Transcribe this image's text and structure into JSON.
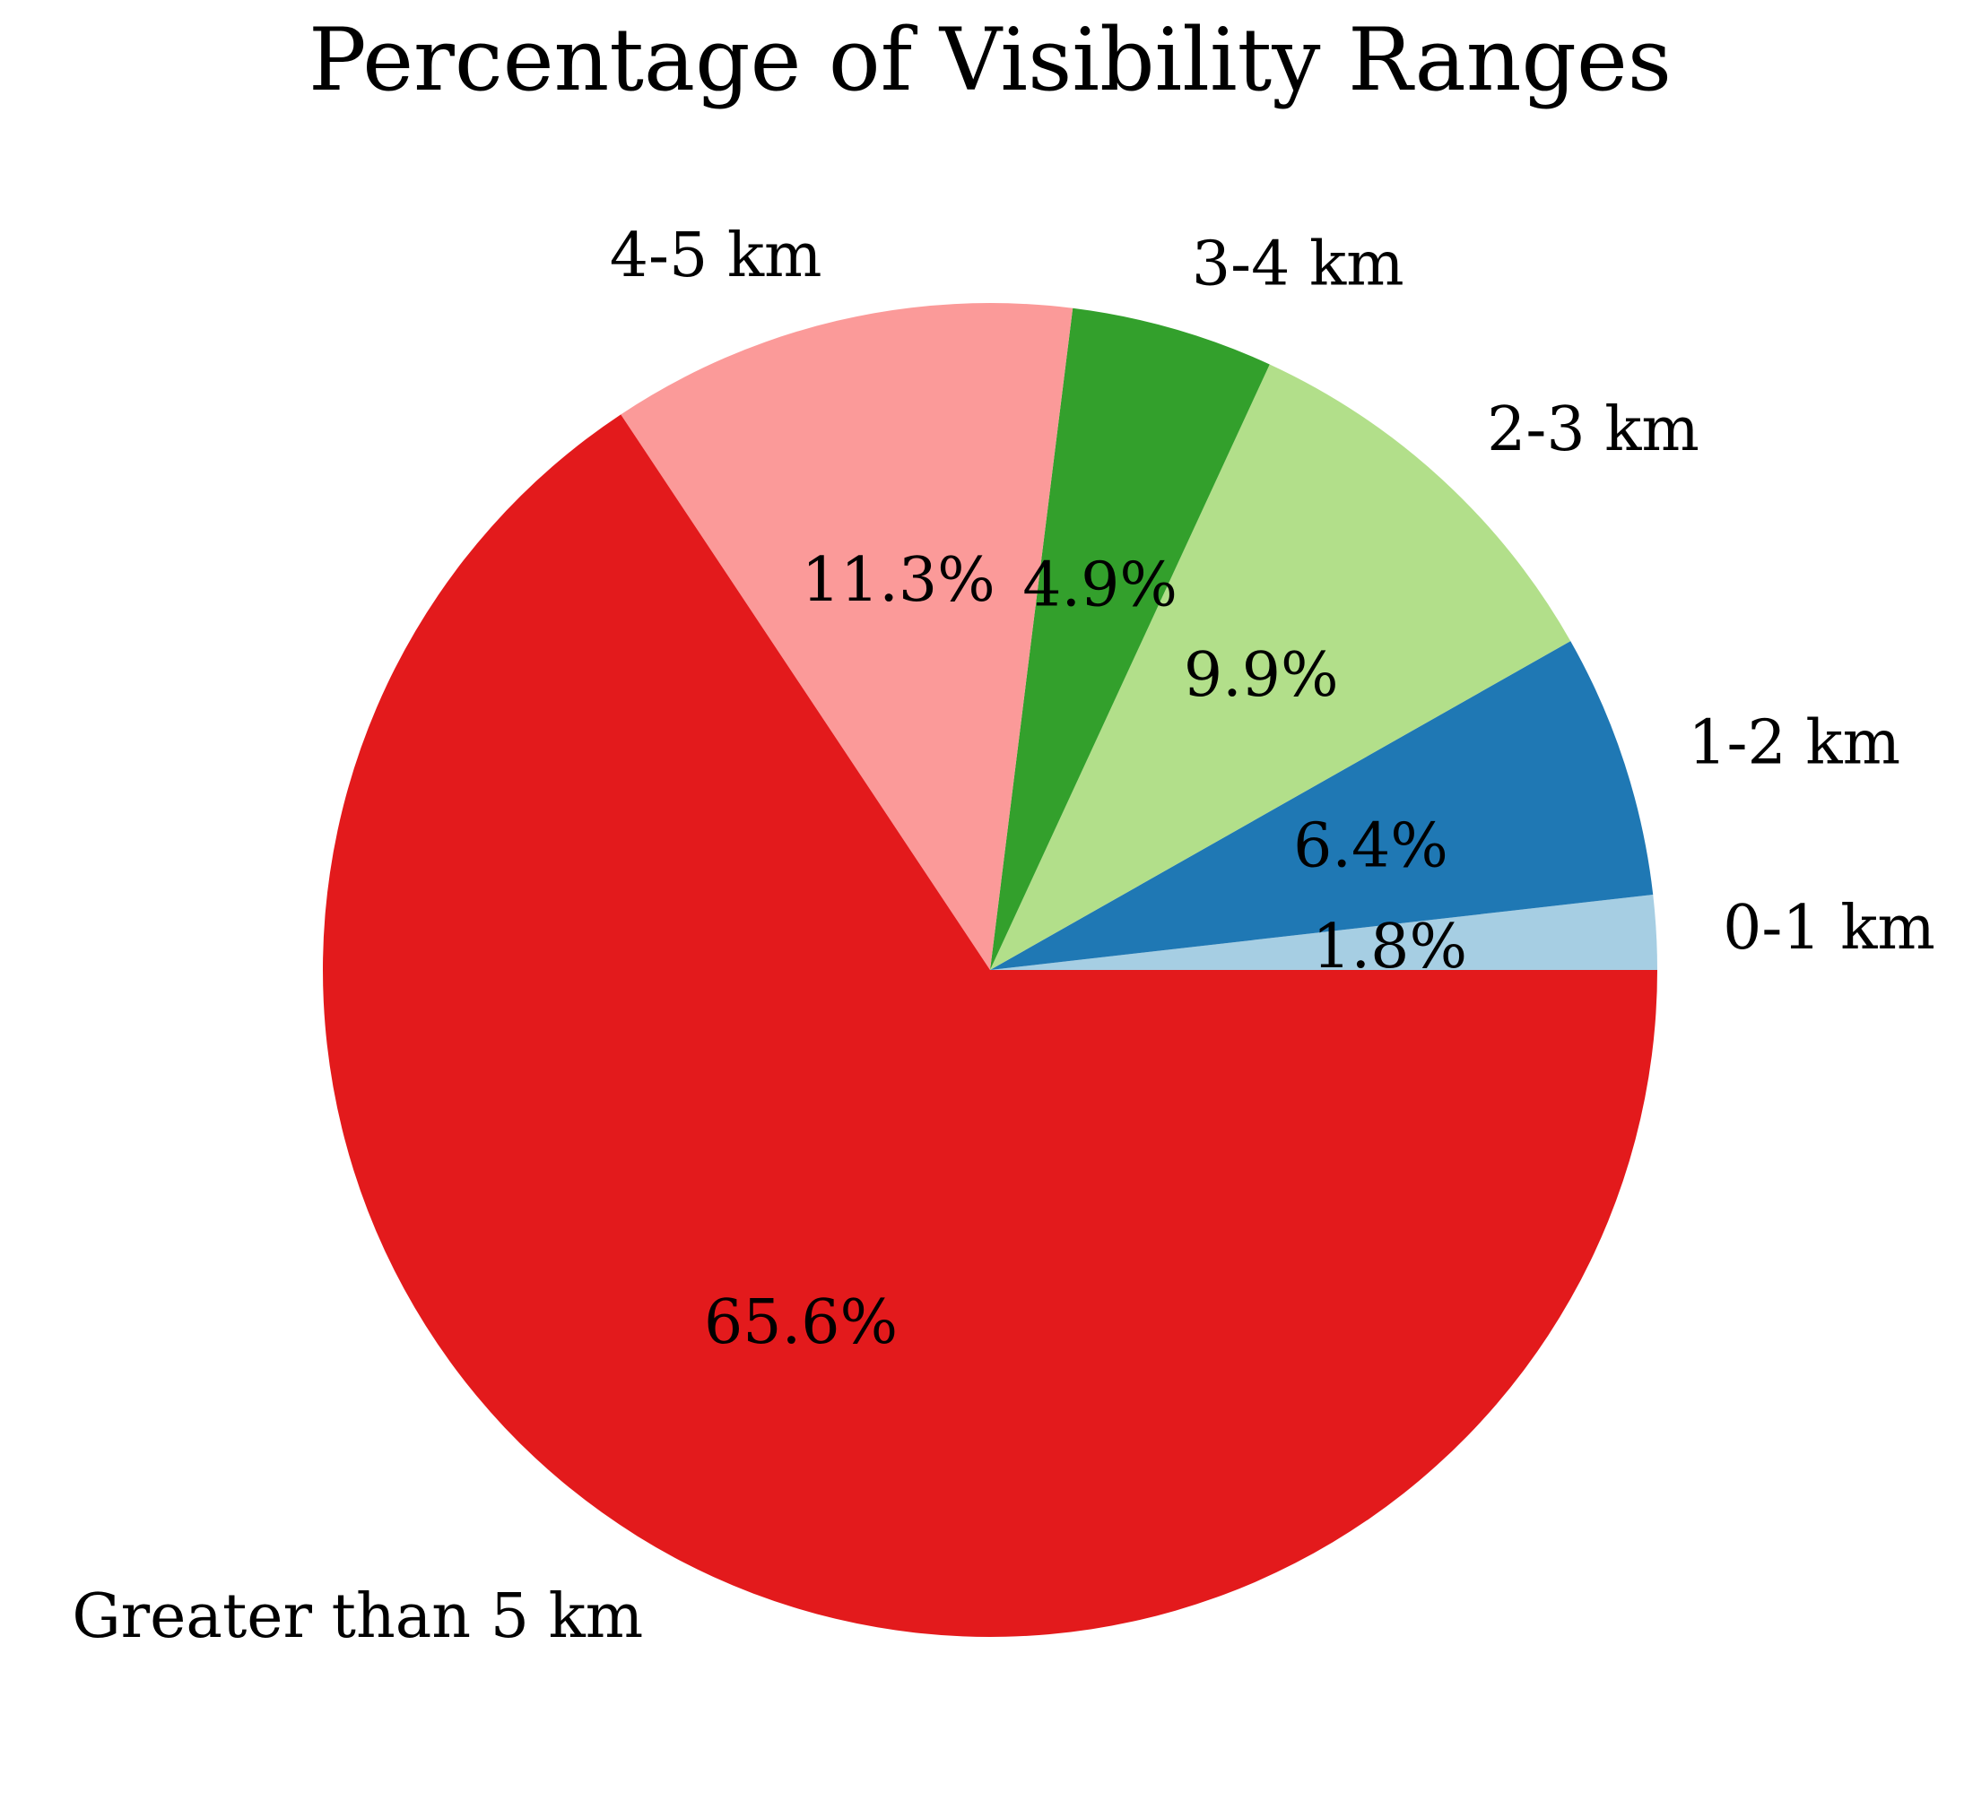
{
  "chart_data": {
    "type": "pie",
    "title": "Percentage of Visibility Ranges",
    "start_angle_deg": 0,
    "direction": "counterclockwise",
    "slices": [
      {
        "label": "0-1 km",
        "value": 1.8,
        "pct_label": "1.8%",
        "color": "#a6cee3"
      },
      {
        "label": "1-2 km",
        "value": 6.4,
        "pct_label": "6.4%",
        "color": "#1f78b4"
      },
      {
        "label": "2-3 km",
        "value": 9.9,
        "pct_label": "9.9%",
        "color": "#b2df8a"
      },
      {
        "label": "3-4 km",
        "value": 4.9,
        "pct_label": "4.9%",
        "color": "#33a02c"
      },
      {
        "label": "4-5 km",
        "value": 11.3,
        "pct_label": "11.3%",
        "color": "#fb9a99"
      },
      {
        "label": "Greater than 5 km",
        "value": 65.6,
        "pct_label": "65.6%",
        "color": "#e31a1c"
      }
    ]
  }
}
